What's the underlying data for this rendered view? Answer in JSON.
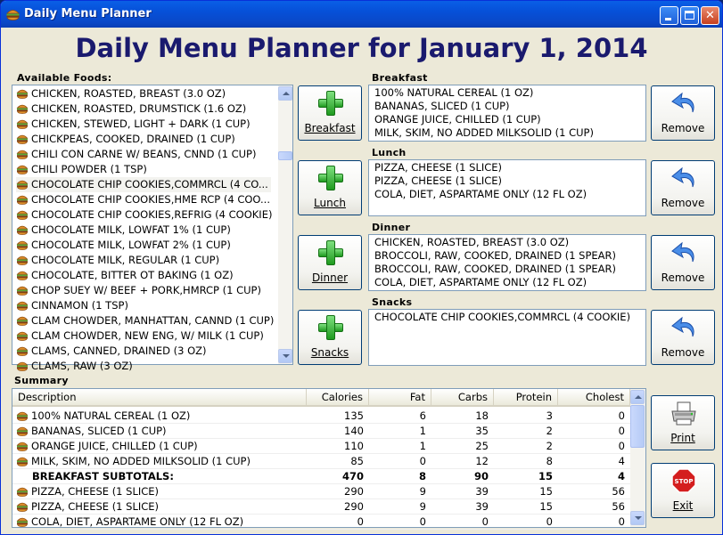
{
  "window": {
    "title": "Daily Menu Planner"
  },
  "heading": "Daily Menu Planner for January 1, 2014",
  "available": {
    "label": "Available Foods:",
    "items": [
      "CHICKEN, ROASTED, BREAST (3.0 OZ)",
      "CHICKEN, ROASTED, DRUMSTICK (1.6 OZ)",
      "CHICKEN, STEWED, LIGHT + DARK (1 CUP)",
      "CHICKPEAS, COOKED, DRAINED (1 CUP)",
      "CHILI CON CARNE W/ BEANS, CNND (1 CUP)",
      "CHILI POWDER (1 TSP)",
      "CHOCOLATE CHIP COOKIES,COMMRCL (4 CO...",
      "CHOCOLATE CHIP COOKIES,HME RCP (4 COO...",
      "CHOCOLATE CHIP COOKIES,REFRIG (4 COOKIE)",
      "CHOCOLATE MILK, LOWFAT 1% (1 CUP)",
      "CHOCOLATE MILK, LOWFAT 2% (1 CUP)",
      "CHOCOLATE MILK, REGULAR (1 CUP)",
      "CHOCOLATE, BITTER OT BAKING (1 OZ)",
      "CHOP SUEY W/ BEEF + PORK,HMRCP (1 CUP)",
      "CINNAMON (1 TSP)",
      "CLAM CHOWDER, MANHATTAN, CANND (1 CUP)",
      "CLAM CHOWDER, NEW ENG, W/ MILK (1 CUP)",
      "CLAMS, CANNED, DRAINED (3 OZ)",
      "CLAMS, RAW (3 OZ)"
    ],
    "selected_index": 6
  },
  "meals": [
    {
      "label": "Breakfast",
      "add_label": "Breakfast",
      "remove_label": "Remove",
      "items": [
        "100% NATURAL CEREAL (1 OZ)",
        "BANANAS, SLICED (1 CUP)",
        "ORANGE JUICE, CHILLED (1 CUP)",
        "MILK, SKIM, NO ADDED MILKSOLID (1 CUP)"
      ]
    },
    {
      "label": "Lunch",
      "add_label": "Lunch",
      "remove_label": "Remove",
      "items": [
        "PIZZA, CHEESE (1 SLICE)",
        "PIZZA, CHEESE (1 SLICE)",
        "COLA, DIET, ASPARTAME ONLY (12 FL OZ)"
      ]
    },
    {
      "label": "Dinner",
      "add_label": "Dinner",
      "remove_label": "Remove",
      "items": [
        "CHICKEN, ROASTED, BREAST (3.0 OZ)",
        "BROCCOLI, RAW, COOKED, DRAINED (1 SPEAR)",
        "BROCCOLI, RAW, COOKED, DRAINED (1 SPEAR)",
        "COLA, DIET, ASPARTAME ONLY (12 FL OZ)"
      ]
    },
    {
      "label": "Snacks",
      "add_label": "Snacks",
      "remove_label": "Remove",
      "items": [
        "CHOCOLATE CHIP COOKIES,COMMRCL (4 COOKIE)"
      ]
    }
  ],
  "summary": {
    "label": "Summary",
    "columns": [
      "Description",
      "Calories",
      "Fat",
      "Carbs",
      "Protein",
      "Cholest"
    ],
    "rows": [
      {
        "icon": true,
        "subtotal": false,
        "cells": [
          "100% NATURAL CEREAL (1 OZ)",
          "135",
          "6",
          "18",
          "3",
          "0"
        ]
      },
      {
        "icon": true,
        "subtotal": false,
        "cells": [
          "BANANAS, SLICED (1 CUP)",
          "140",
          "1",
          "35",
          "2",
          "0"
        ]
      },
      {
        "icon": true,
        "subtotal": false,
        "cells": [
          "ORANGE JUICE, CHILLED (1 CUP)",
          "110",
          "1",
          "25",
          "2",
          "0"
        ]
      },
      {
        "icon": true,
        "subtotal": false,
        "cells": [
          "MILK, SKIM, NO ADDED MILKSOLID (1 CUP)",
          "85",
          "0",
          "12",
          "8",
          "4"
        ]
      },
      {
        "icon": false,
        "subtotal": true,
        "cells": [
          "BREAKFAST SUBTOTALS:",
          "470",
          "8",
          "90",
          "15",
          "4"
        ]
      },
      {
        "icon": true,
        "subtotal": false,
        "cells": [
          "PIZZA, CHEESE (1 SLICE)",
          "290",
          "9",
          "39",
          "15",
          "56"
        ]
      },
      {
        "icon": true,
        "subtotal": false,
        "cells": [
          "PIZZA, CHEESE (1 SLICE)",
          "290",
          "9",
          "39",
          "15",
          "56"
        ]
      },
      {
        "icon": true,
        "subtotal": false,
        "cells": [
          "COLA, DIET, ASPARTAME ONLY (12 FL OZ)",
          "0",
          "0",
          "0",
          "0",
          "0"
        ]
      }
    ]
  },
  "actions": {
    "print_label": "Print",
    "exit_label": "Exit",
    "stop_text": "STOP"
  },
  "icons": {
    "app": "burger-icon",
    "food": "burger-icon",
    "add": "plus-icon",
    "remove": "undo-arrow-icon",
    "print": "printer-icon",
    "exit": "stop-sign-icon"
  }
}
